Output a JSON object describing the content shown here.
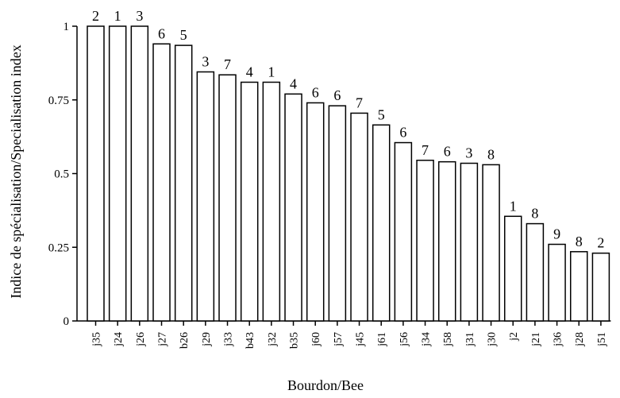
{
  "chart_data": {
    "type": "bar",
    "xlabel": "Bourdon/Bee",
    "ylabel": "Indice de spécialisation/Specialisation index",
    "ylim": [
      0,
      1
    ],
    "yticks": [
      0,
      0.25,
      0.5,
      0.75,
      1
    ],
    "ytick_labels": [
      "0",
      "0.25",
      "0.5",
      "0.75",
      "1"
    ],
    "grid": false,
    "categories": [
      "j35",
      "j24",
      "j26",
      "j27",
      "b26",
      "j29",
      "j33",
      "b43",
      "j32",
      "b35",
      "j60",
      "j57",
      "j45",
      "j61",
      "j56",
      "j34",
      "j58",
      "j31",
      "j30",
      "j2",
      "j21",
      "j36",
      "j28",
      "j51"
    ],
    "values": [
      1.0,
      1.0,
      1.0,
      0.94,
      0.935,
      0.845,
      0.835,
      0.81,
      0.81,
      0.77,
      0.74,
      0.73,
      0.705,
      0.665,
      0.605,
      0.545,
      0.54,
      0.535,
      0.53,
      0.355,
      0.33,
      0.26,
      0.235,
      0.23
    ],
    "bar_labels": [
      "2",
      "1",
      "3",
      "6",
      "5",
      "3",
      "7",
      "4",
      "1",
      "4",
      "6",
      "6",
      "7",
      "5",
      "6",
      "7",
      "6",
      "3",
      "8",
      "1",
      "8",
      "9",
      "8",
      "2"
    ],
    "colors": {
      "bar_fill": "#ffffff",
      "bar_stroke": "#000000",
      "axis": "#000000"
    }
  }
}
